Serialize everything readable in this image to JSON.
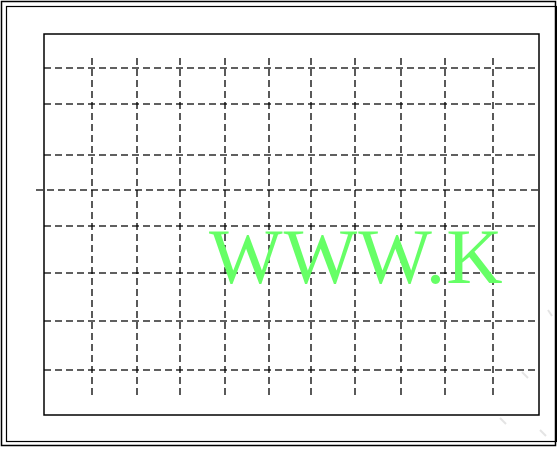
{
  "watermark": {
    "text": "WWW.K",
    "color": "#66ff66"
  },
  "grid": {
    "line_color": "#000000",
    "dash": "dashed"
  },
  "faint_marks": {
    "color": "#e4e4e4"
  }
}
